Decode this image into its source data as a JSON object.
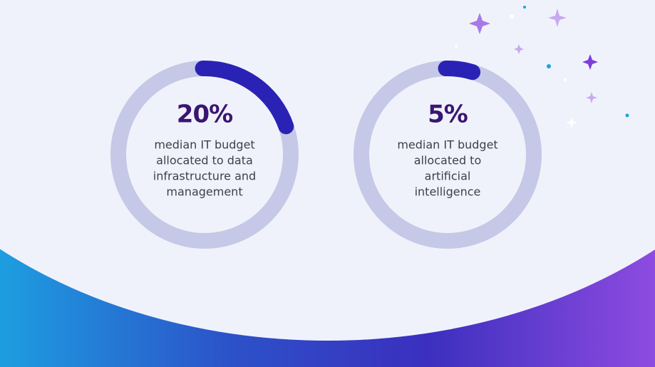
{
  "chart_data": [
    {
      "type": "donut",
      "values": [
        20
      ],
      "value_labels": [
        "20%"
      ],
      "color": "#2a22b5",
      "track_color": "#c5c8e6",
      "caption": [
        "median IT budget",
        "allocated to data",
        "infrastructure and",
        "management"
      ]
    },
    {
      "type": "donut",
      "values": [
        5
      ],
      "value_labels": [
        "5%"
      ],
      "color": "#2a22b5",
      "track_color": "#c5c8e6",
      "caption": [
        "median IT budget",
        "allocated to",
        "artificial",
        "intelligence"
      ]
    }
  ]
}
